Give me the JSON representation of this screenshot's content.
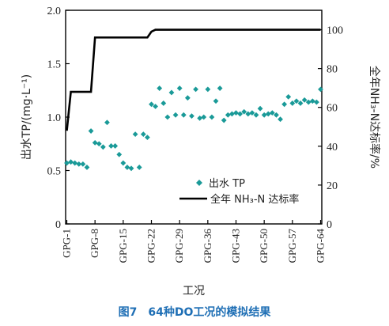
{
  "figure": {
    "caption": "图7　64种DO工况的模拟结果"
  },
  "chart_data": {
    "type": "scatter+line",
    "xlabel": "工况",
    "ylabel_left": "出水TP/(mg·L⁻¹)",
    "ylabel_right": "全年NH₃-N达标率/%",
    "ylim_left": [
      0,
      2.0
    ],
    "ylim_right": [
      0,
      110
    ],
    "yticks_left": [
      "0",
      "0.5",
      "1.0",
      "1.5",
      "2.0"
    ],
    "yticks_right": [
      "0",
      "20",
      "40",
      "60",
      "80",
      "100"
    ],
    "xlim": [
      1,
      64
    ],
    "xtick_labels": [
      "GPG-1",
      "GPG-8",
      "GPG-15",
      "GPG-22",
      "GPG-29",
      "GPG-36",
      "GPG-43",
      "GPG-50",
      "GPG-57",
      "GPG-64"
    ],
    "xtick_positions": [
      1,
      8,
      15,
      22,
      29,
      36,
      43,
      50,
      57,
      64
    ],
    "legend": {
      "placement": "bottom-center",
      "items": [
        {
          "label": "出水 TP",
          "marker": "diamond",
          "color": "#1a9a98"
        },
        {
          "label": "全年 NH₃-N 达标率",
          "marker": "line",
          "color": "#000000"
        }
      ]
    },
    "series": [
      {
        "name": "出水 TP",
        "type": "scatter",
        "axis": "left",
        "color": "#1a9a98",
        "x": [
          1,
          2,
          3,
          4,
          5,
          6,
          7,
          8,
          9,
          10,
          11,
          12,
          13,
          14,
          15,
          16,
          17,
          18,
          19,
          20,
          21,
          22,
          23,
          24,
          25,
          26,
          27,
          28,
          29,
          30,
          31,
          32,
          33,
          34,
          35,
          36,
          37,
          38,
          39,
          40,
          41,
          42,
          43,
          44,
          45,
          46,
          47,
          48,
          49,
          50,
          51,
          52,
          53,
          54,
          55,
          56,
          57,
          58,
          59,
          60,
          61,
          62,
          63,
          64
        ],
        "y": [
          0.57,
          0.58,
          0.57,
          0.56,
          0.56,
          0.53,
          0.87,
          0.76,
          0.75,
          0.72,
          0.95,
          0.73,
          0.73,
          0.65,
          0.57,
          0.53,
          0.52,
          0.84,
          0.53,
          0.84,
          0.81,
          1.12,
          1.1,
          1.27,
          1.13,
          1.0,
          1.23,
          1.02,
          1.27,
          1.02,
          1.18,
          1.01,
          1.26,
          0.99,
          1.0,
          1.26,
          1.0,
          1.15,
          1.27,
          0.97,
          1.02,
          1.03,
          1.04,
          1.03,
          1.05,
          1.03,
          1.04,
          1.02,
          1.08,
          1.02,
          1.03,
          1.04,
          1.02,
          0.98,
          1.12,
          1.19,
          1.13,
          1.15,
          1.13,
          1.16,
          1.14,
          1.15,
          1.14,
          1.26
        ]
      },
      {
        "name": "全年 NH₃-N 达标率",
        "type": "step-line",
        "axis": "right",
        "color": "#000000",
        "x": [
          1,
          2,
          3,
          4,
          5,
          6,
          7,
          8,
          9,
          10,
          11,
          12,
          13,
          14,
          15,
          16,
          17,
          18,
          19,
          20,
          21,
          22,
          23,
          24,
          25,
          26,
          27,
          28,
          29,
          30,
          31,
          32,
          33,
          34,
          35,
          36,
          37,
          38,
          39,
          40,
          41,
          42,
          43,
          44,
          45,
          46,
          47,
          48,
          49,
          50,
          51,
          52,
          53,
          54,
          55,
          56,
          57,
          58,
          59,
          60,
          61,
          62,
          63,
          64
        ],
        "y": [
          48,
          68,
          68,
          68,
          68,
          68,
          68,
          96,
          96,
          96,
          96,
          96,
          96,
          96,
          96,
          96,
          96,
          96,
          96,
          96,
          96,
          99,
          100,
          100,
          100,
          100,
          100,
          100,
          100,
          100,
          100,
          100,
          100,
          100,
          100,
          100,
          100,
          100,
          100,
          100,
          100,
          100,
          100,
          100,
          100,
          100,
          100,
          100,
          100,
          100,
          100,
          100,
          100,
          100,
          100,
          100,
          100,
          100,
          100,
          100,
          100,
          100,
          100,
          100
        ]
      }
    ]
  }
}
